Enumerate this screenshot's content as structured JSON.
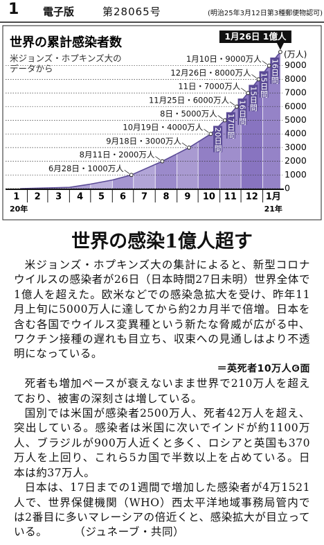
{
  "header": {
    "page": "1",
    "edition": "電子版",
    "issue": "第28065号",
    "permit": "(明治25年3月12日第3種郵便物認可)"
  },
  "chart_data": {
    "type": "area",
    "title": "世界の累計感染者数",
    "subtitle": [
      "米ジョンズ・ホプキンズ大の",
      "データから"
    ],
    "y_unit": "(万人)",
    "x": [
      "2020-01-22",
      "2020-04-01",
      "2020-05-01",
      "2020-06-01",
      "2020-06-28",
      "2020-08-11",
      "2020-09-18",
      "2020-10-19",
      "2020-11-08",
      "2020-11-25",
      "2020-12-11",
      "2020-12-26",
      "2021-01-10",
      "2021-01-26"
    ],
    "values": [
      0,
      90,
      330,
      630,
      1000,
      2000,
      3000,
      4000,
      5000,
      6000,
      7000,
      8000,
      9000,
      10000
    ],
    "value_labels": [
      null,
      null,
      null,
      null,
      "6月28日・1000万人",
      "8月11日・2000万人",
      "9月18日・3000万人",
      "10月19日・4000万人",
      "8日・5000万人",
      "11月25日・6000万人",
      "11日・7000万人",
      "12月26日・8000万人",
      "1月10日・9000万人",
      "1月26日 1億人"
    ],
    "interval_labels": [
      "20日間",
      "17日間",
      "16日間",
      "15日間",
      "15日間",
      "16日間"
    ],
    "xlim": [
      "2020-01-01",
      "2021-01-31"
    ],
    "xticks": [
      {
        "value": "2020-01-01",
        "label": "1"
      },
      {
        "value": "2020-02-01",
        "label": "2"
      },
      {
        "value": "2020-03-01",
        "label": "3"
      },
      {
        "value": "2020-04-01",
        "label": "4"
      },
      {
        "value": "2020-05-01",
        "label": "5"
      },
      {
        "value": "2020-06-01",
        "label": "6"
      },
      {
        "value": "2020-07-01",
        "label": "7"
      },
      {
        "value": "2020-08-01",
        "label": "8"
      },
      {
        "value": "2020-09-01",
        "label": "9"
      },
      {
        "value": "2020-10-01",
        "label": "10"
      },
      {
        "value": "2020-11-01",
        "label": "11"
      },
      {
        "value": "2020-12-01",
        "label": "12"
      },
      {
        "value": "2021-01-01",
        "label": "1月"
      }
    ],
    "year_labels": [
      "20年",
      "21年"
    ],
    "ylim": [
      0,
      10000
    ],
    "yticks": [
      0,
      1000,
      2000,
      3000,
      4000,
      5000,
      6000,
      7000,
      8000,
      9000
    ],
    "grid": true,
    "color": "#5b4b96"
  },
  "headline": "世界の感染1億人超す",
  "article": {
    "lead": "米ジョンズ・ホプキンズ大の集計によると、新型コロナウイルスの感染者が26日（日本時間27日未明）世界全体で1億人を超えた。欧米などでの感染急拡大を受け、昨年11月上旬に5000万人に達してから約2カ月半で倍増。日本を含む各国でウイルス変異種という新たな脅威が広がる中、ワクチン接種の遅れも目立ち、収束への見通しはより不透明になっている。",
    "reference": "＝英死者10万人❻面",
    "body": [
      "死者も増加ペースが衰えないまま世界で210万人を超えており、被害の深刻さは増している。",
      "国別では米国が感染者2500万人、死者42万人を超え、突出している。感染者は米国に次いでインドが約1100万人、ブラジルが900万人近くと多く、ロシアと英国も370万人を上回り、これら5カ国で半数以上を占めている。日本は約37万人。",
      "日本は、17日までの1週間で増加した感染者が4万1521人で、世界保健機関（WHO）西太平洋地域事務局管内では2番目に多いマレーシアの倍近くと、感染拡大が目立っている。"
    ],
    "credit": "（ジュネーブ・共同）"
  }
}
